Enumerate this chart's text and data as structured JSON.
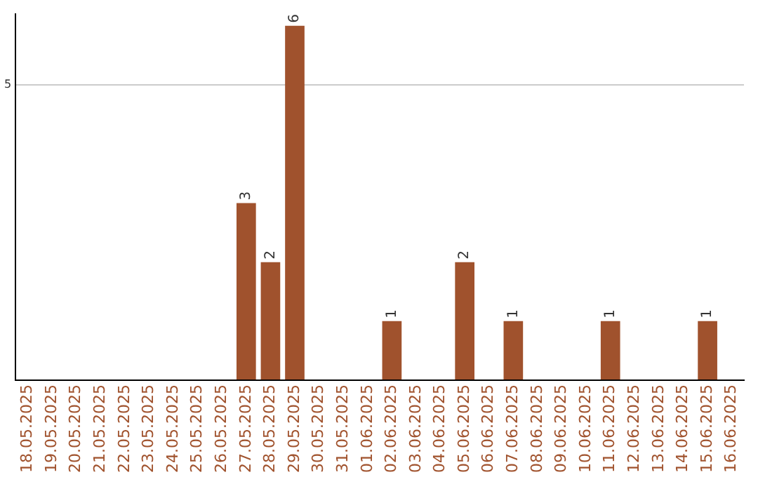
{
  "chart_data": {
    "type": "bar",
    "categories": [
      "18.05.2025",
      "19.05.2025",
      "20.05.2025",
      "21.05.2025",
      "22.05.2025",
      "23.05.2025",
      "24.05.2025",
      "25.05.2025",
      "26.05.2025",
      "27.05.2025",
      "28.05.2025",
      "29.05.2025",
      "30.05.2025",
      "31.05.2025",
      "01.06.2025",
      "02.06.2025",
      "03.06.2025",
      "04.06.2025",
      "05.06.2025",
      "06.06.2025",
      "07.06.2025",
      "08.06.2025",
      "09.06.2025",
      "10.06.2025",
      "11.06.2025",
      "12.06.2025",
      "13.06.2025",
      "14.06.2025",
      "15.06.2025",
      "16.06.2025"
    ],
    "values": [
      0,
      0,
      0,
      0,
      0,
      0,
      0,
      0,
      0,
      3,
      2,
      6,
      0,
      0,
      0,
      1,
      0,
      0,
      2,
      0,
      1,
      0,
      0,
      0,
      1,
      0,
      0,
      0,
      1,
      0
    ],
    "value_labels": [
      null,
      null,
      null,
      null,
      null,
      null,
      null,
      null,
      null,
      "3",
      "2",
      "6",
      null,
      null,
      null,
      "1",
      null,
      null,
      "2",
      null,
      "1",
      null,
      null,
      null,
      "1",
      null,
      null,
      null,
      "1",
      null
    ],
    "color": "#a0522d",
    "ylim": [
      0,
      6.2
    ],
    "yticks": [
      {
        "value": 0,
        "label": null
      },
      5
    ],
    "grid": "y",
    "legend": false
  }
}
